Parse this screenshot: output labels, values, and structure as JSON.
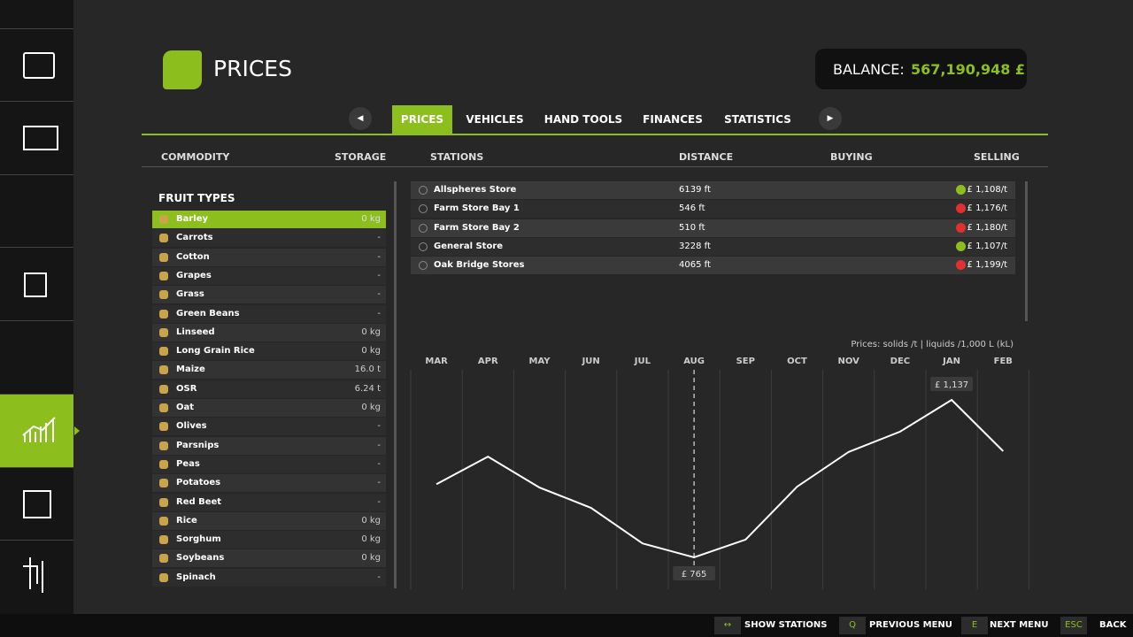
{
  "header": {
    "title": "PRICES",
    "balance_label": "BALANCE:",
    "balance_value": "567,190,948 £"
  },
  "tabs": [
    "PRICES",
    "VEHICLES",
    "HAND TOOLS",
    "FINANCES",
    "STATISTICS"
  ],
  "columns": {
    "commodity": "COMMODITY",
    "storage": "STORAGE",
    "stations": "STATIONS",
    "distance": "DISTANCE",
    "buying": "BUYING",
    "selling": "SELLING"
  },
  "fruit_list": {
    "heading": "FRUIT TYPES",
    "items": [
      {
        "name": "Barley",
        "storage": "0 kg"
      },
      {
        "name": "Carrots",
        "storage": "-"
      },
      {
        "name": "Cotton",
        "storage": "-"
      },
      {
        "name": "Grapes",
        "storage": "-"
      },
      {
        "name": "Grass",
        "storage": "-"
      },
      {
        "name": "Green Beans",
        "storage": "-"
      },
      {
        "name": "Linseed",
        "storage": "0 kg"
      },
      {
        "name": "Long Grain Rice",
        "storage": "0 kg"
      },
      {
        "name": "Maize",
        "storage": "16.0 t"
      },
      {
        "name": "OSR",
        "storage": "6.24 t"
      },
      {
        "name": "Oat",
        "storage": "0 kg"
      },
      {
        "name": "Olives",
        "storage": "-"
      },
      {
        "name": "Parsnips",
        "storage": "-"
      },
      {
        "name": "Peas",
        "storage": "-"
      },
      {
        "name": "Potatoes",
        "storage": "-"
      },
      {
        "name": "Red Beet",
        "storage": "-"
      },
      {
        "name": "Rice",
        "storage": "0 kg"
      },
      {
        "name": "Sorghum",
        "storage": "0 kg"
      },
      {
        "name": "Soybeans",
        "storage": "0 kg"
      },
      {
        "name": "Spinach",
        "storage": "-"
      }
    ]
  },
  "stations": [
    {
      "name": "Allspheres Store",
      "distance": "6139 ft",
      "price": "£ 1,108/t",
      "trend": "up"
    },
    {
      "name": "Farm Store Bay 1",
      "distance": "546 ft",
      "price": "£ 1,176/t",
      "trend": "down"
    },
    {
      "name": "Farm Store Bay 2",
      "distance": "510 ft",
      "price": "£ 1,180/t",
      "trend": "down"
    },
    {
      "name": "General Store",
      "distance": "3228 ft",
      "price": "£ 1,107/t",
      "trend": "up"
    },
    {
      "name": "Oak Bridge Stores",
      "distance": "4065 ft",
      "price": "£ 1,199/t",
      "trend": "down"
    }
  ],
  "chart_data": {
    "type": "line",
    "note": "Prices: solids /t | liquids /1,000 L (kL)",
    "categories": [
      "MAR",
      "APR",
      "MAY",
      "JUN",
      "JUL",
      "AUG",
      "SEP",
      "OCT",
      "NOV",
      "DEC",
      "JAN",
      "FEB"
    ],
    "values": [
      938,
      1003,
      930,
      882,
      798,
      765,
      807,
      932,
      1014,
      1062,
      1137,
      1016
    ],
    "value_labels": [
      null,
      null,
      null,
      null,
      null,
      "£ 765",
      null,
      null,
      null,
      null,
      "£ 1,137",
      null
    ],
    "color": "#ffffff"
  },
  "footer": [
    {
      "key": "↔",
      "label": "SHOW STATIONS"
    },
    {
      "key": "Q",
      "label": "PREVIOUS MENU"
    },
    {
      "key": "E",
      "label": "NEXT MENU"
    },
    {
      "key": "ESC",
      "label": "BACK"
    }
  ]
}
